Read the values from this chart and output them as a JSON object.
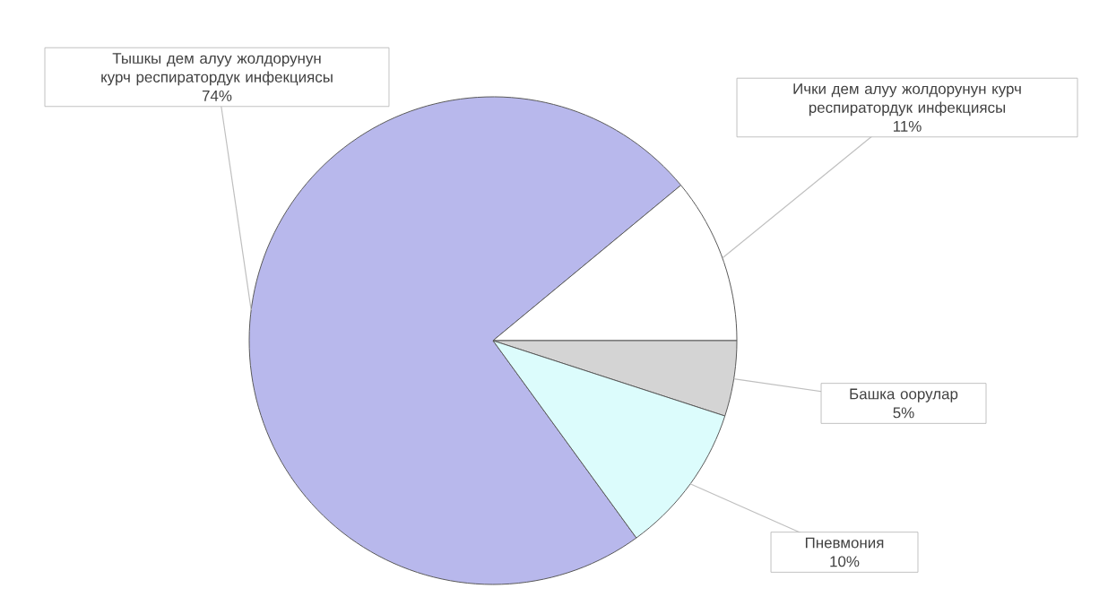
{
  "chart_data": {
    "type": "pie",
    "categories": [
      "Тышкы дем алуу жолдорунун курч респиратордук инфекциясы",
      "Ички дем алуу жолдорунун курч респиратордук инфекциясы",
      "Башка оорулар",
      "Пневмония"
    ],
    "values": [
      74,
      11,
      5,
      10
    ],
    "value_labels": [
      "74%",
      "11%",
      "5%",
      "10%"
    ],
    "colors": [
      "#b8b8ec",
      "#ffffff",
      "#d4d4d4",
      "#dcfcfc"
    ],
    "data_labels": true
  }
}
